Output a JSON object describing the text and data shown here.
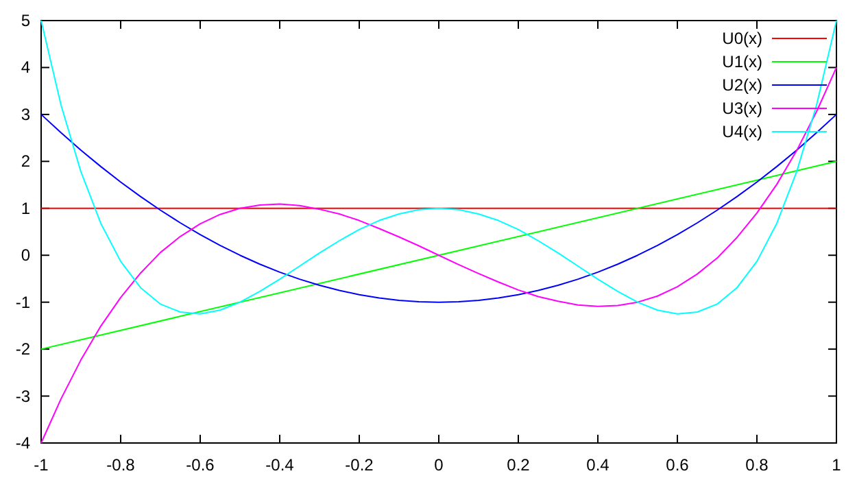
{
  "chart_data": {
    "type": "line",
    "x": [
      -1,
      -0.95,
      -0.9,
      -0.85,
      -0.8,
      -0.75,
      -0.7,
      -0.65,
      -0.6,
      -0.55,
      -0.5,
      -0.45,
      -0.4,
      -0.35,
      -0.3,
      -0.25,
      -0.2,
      -0.15,
      -0.1,
      -0.05,
      0,
      0.05,
      0.1,
      0.15,
      0.2,
      0.25,
      0.3,
      0.35,
      0.4,
      0.45,
      0.5,
      0.55,
      0.6,
      0.65,
      0.7,
      0.75,
      0.8,
      0.85,
      0.9,
      0.95,
      1
    ],
    "series": [
      {
        "name": "U1(x)",
        "color": "#00ff00",
        "x": [
          -1,
          1
        ],
        "values": [
          -2,
          2
        ]
      },
      {
        "name": "U2(x)",
        "color": "#0000ff",
        "values": [
          3,
          2.61,
          2.24,
          1.89,
          1.56,
          1.25,
          0.96,
          0.69,
          0.44,
          0.21,
          0,
          -0.19,
          -0.36,
          -0.51,
          -0.64,
          -0.75,
          -0.84,
          -0.91,
          -0.96,
          -0.99,
          -1,
          -0.99,
          -0.96,
          -0.91,
          -0.84,
          -0.75,
          -0.64,
          -0.51,
          -0.36,
          -0.19,
          0,
          0.21,
          0.44,
          0.69,
          0.96,
          1.25,
          1.56,
          1.89,
          2.24,
          2.61,
          3
        ]
      },
      {
        "name": "U3(x)",
        "color": "#ff00ff",
        "values": [
          -4,
          -3.06,
          -2.23,
          -1.51,
          -0.9,
          -0.38,
          0.06,
          0.4,
          0.67,
          0.87,
          1,
          1.07,
          1.09,
          1.06,
          0.98,
          0.88,
          0.74,
          0.57,
          0.39,
          0.2,
          0,
          -0.2,
          -0.39,
          -0.57,
          -0.74,
          -0.88,
          -0.98,
          -1.06,
          -1.09,
          -1.07,
          -1,
          -0.87,
          -0.67,
          -0.4,
          -0.06,
          0.38,
          0.9,
          1.51,
          2.23,
          3.06,
          4
        ]
      },
      {
        "name": "U4(x)",
        "color": "#00ffff",
        "values": [
          5,
          3.2,
          1.78,
          0.68,
          -0.13,
          -0.69,
          -1.04,
          -1.21,
          -1.25,
          -1.17,
          -1,
          -0.77,
          -0.51,
          -0.23,
          0.05,
          0.31,
          0.55,
          0.74,
          0.88,
          0.97,
          1,
          0.97,
          0.88,
          0.74,
          0.55,
          0.31,
          0.05,
          -0.23,
          -0.51,
          -0.77,
          -1,
          -1.17,
          -1.25,
          -1.21,
          -1.04,
          -0.69,
          -0.13,
          0.68,
          1.78,
          3.2,
          5
        ]
      }
    ],
    "xlim": [
      -1,
      1
    ],
    "xticks": [
      -1,
      -0.8,
      -0.6,
      -0.4,
      -0.2,
      0,
      0.2,
      0.4,
      0.6,
      0.8,
      1
    ],
    "ylim": [
      -4,
      5
    ],
    "yticks": [
      -4,
      -3,
      -2,
      -1,
      0,
      1,
      2,
      3,
      4,
      5
    ],
    "ref_lines": [
      {
        "axis": "y",
        "value": 1,
        "label": "U0(x)",
        "color": "#ff0000"
      }
    ],
    "grid": false,
    "legend": "top right",
    "marker": "none",
    "line_style": "solid"
  }
}
